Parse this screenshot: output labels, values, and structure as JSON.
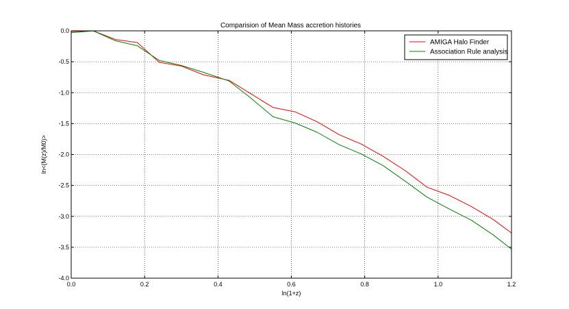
{
  "chart_data": {
    "type": "line",
    "title": "Comparision of Mean Mass accretion histories",
    "xlabel": "ln(1+z)",
    "ylabel": "ln<(M(z)/M0)>",
    "xlim": [
      0.0,
      1.2
    ],
    "ylim": [
      -4.0,
      0.0
    ],
    "xticks": [
      "0.0",
      "0.2",
      "0.4",
      "0.6",
      "0.8",
      "1.0",
      "1.2"
    ],
    "yticks": [
      "0.0",
      "-0.5",
      "-1.0",
      "-1.5",
      "-2.0",
      "-2.5",
      "-3.0",
      "-3.5",
      "-4.0"
    ],
    "grid": true,
    "legend_position": "top-right",
    "series": [
      {
        "name": "AMIGA Halo Finder",
        "color": "#ff0000",
        "x": [
          0.0,
          0.06,
          0.12,
          0.18,
          0.24,
          0.3,
          0.36,
          0.43,
          0.49,
          0.55,
          0.61,
          0.67,
          0.73,
          0.79,
          0.85,
          0.91,
          0.97,
          1.03,
          1.09,
          1.15,
          1.2
        ],
        "y": [
          -0.01,
          0.0,
          -0.14,
          -0.19,
          -0.51,
          -0.57,
          -0.71,
          -0.8,
          -1.02,
          -1.24,
          -1.31,
          -1.47,
          -1.68,
          -1.83,
          -2.03,
          -2.26,
          -2.53,
          -2.66,
          -2.84,
          -3.05,
          -3.27
        ]
      },
      {
        "name": "Association Rule analysis",
        "color": "#008000",
        "x": [
          0.0,
          0.06,
          0.12,
          0.18,
          0.24,
          0.3,
          0.36,
          0.43,
          0.49,
          0.55,
          0.61,
          0.67,
          0.73,
          0.79,
          0.85,
          0.91,
          0.97,
          1.03,
          1.09,
          1.15,
          1.2
        ],
        "y": [
          -0.03,
          0.0,
          -0.16,
          -0.24,
          -0.48,
          -0.56,
          -0.67,
          -0.81,
          -1.09,
          -1.39,
          -1.49,
          -1.64,
          -1.84,
          -1.99,
          -2.18,
          -2.43,
          -2.69,
          -2.88,
          -3.06,
          -3.3,
          -3.53
        ]
      }
    ]
  }
}
